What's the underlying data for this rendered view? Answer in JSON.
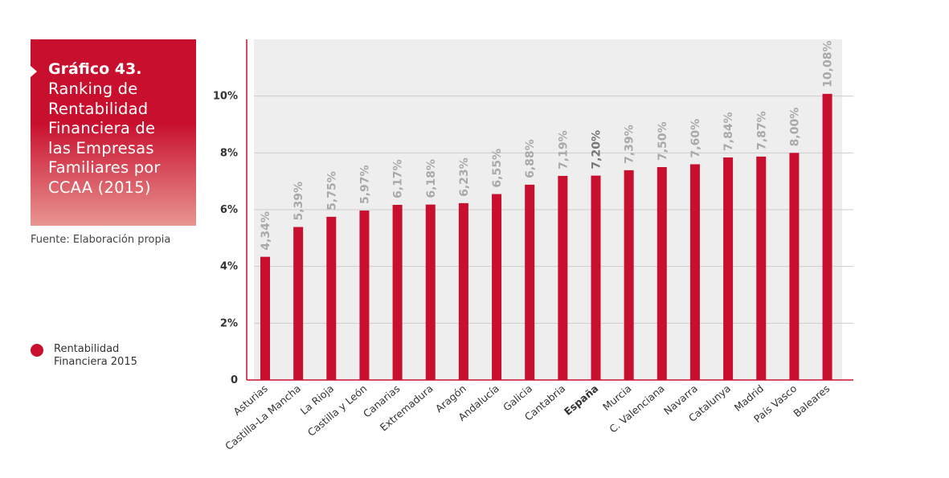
{
  "title_block": {
    "heading": "Gráfico 43.",
    "lines": [
      "Ranking de",
      "Rentabilidad",
      "Financiera de",
      "las Empresas",
      "Familiares por",
      "CCAA (2015)"
    ]
  },
  "source": "Fuente: Elaboración propia",
  "legend": {
    "label": "Rentabilidad Financiera 2015",
    "color": "#c8102e"
  },
  "colors": {
    "bar": "#c8102e",
    "axis": "#c8102e",
    "plot_background": "#eeeeee",
    "grid": "#cccccc",
    "value_label": "#a9a9a9"
  },
  "chart_data": {
    "type": "bar",
    "categories": [
      "Asturias",
      "Castilla-La Mancha",
      "La Rioja",
      "Castilla y León",
      "Canarias",
      "Extremadura",
      "Aragón",
      "Andalucía",
      "Galicia",
      "Cantabria",
      "España",
      "Murcia",
      "C. Valenciana",
      "Navarra",
      "Catalunya",
      "Madrid",
      "País Vasco",
      "Baleares"
    ],
    "values": [
      4.34,
      5.39,
      5.75,
      5.97,
      6.17,
      6.18,
      6.23,
      6.55,
      6.88,
      7.19,
      7.2,
      7.39,
      7.5,
      7.6,
      7.84,
      7.87,
      8.0,
      10.08
    ],
    "value_labels": [
      "4,34%",
      "5,39%",
      "5,75%",
      "5,97%",
      "6,17%",
      "6,18%",
      "6,23%",
      "6,55%",
      "6,88%",
      "7,19%",
      "7,20%",
      "7,39%",
      "7,50%",
      "7,60%",
      "7,84%",
      "7,87%",
      "8,00%",
      "10,08%"
    ],
    "highlight_category": "España",
    "y_ticks": [
      0,
      2,
      4,
      6,
      8,
      10
    ],
    "y_tick_labels": [
      "0",
      "2%",
      "4%",
      "6%",
      "8%",
      "10%"
    ],
    "ylim": [
      0,
      12
    ],
    "grid": true,
    "series": [
      {
        "name": "Rentabilidad Financiera 2015",
        "values": [
          4.34,
          5.39,
          5.75,
          5.97,
          6.17,
          6.18,
          6.23,
          6.55,
          6.88,
          7.19,
          7.2,
          7.39,
          7.5,
          7.6,
          7.84,
          7.87,
          8.0,
          10.08
        ]
      }
    ]
  }
}
